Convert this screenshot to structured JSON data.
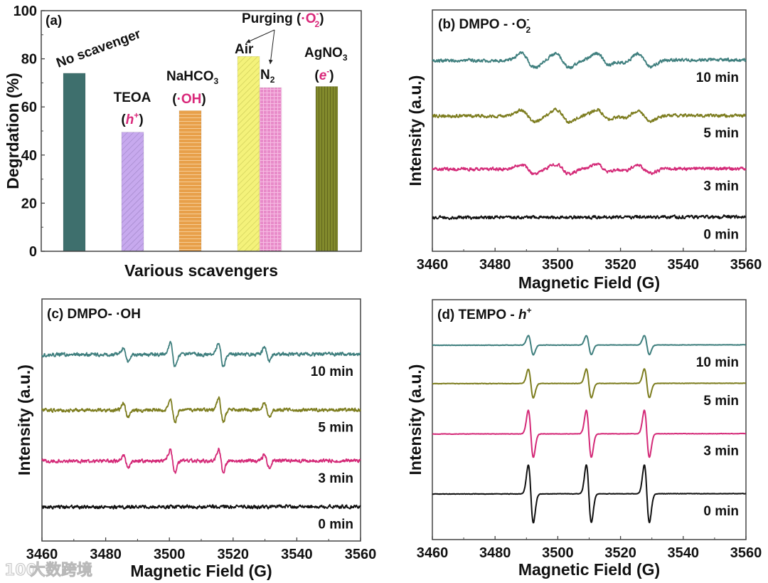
{
  "watermark": {
    "logo": "100",
    "text": "大数跨境"
  },
  "chart_data": [
    {
      "type": "bar",
      "panel_label": "(a)",
      "xlabel": "Various scavengers",
      "ylabel": "Degrdation (%)",
      "ylim": [
        0,
        100
      ],
      "yticks": [
        "0",
        "20",
        "40",
        "60",
        "80",
        "100"
      ],
      "ytick_values": [
        0,
        20,
        40,
        60,
        80,
        100
      ],
      "categories": [
        "No scavenger",
        "TEOA",
        "NaHCO3",
        "Air",
        "N2",
        "AgNO3"
      ],
      "values": [
        74,
        49.5,
        58.5,
        81,
        68,
        68.5
      ],
      "colors": [
        "#3e6f6d",
        "#c7a9ee",
        "#e8a04a",
        "#f4f27a",
        "#e88bc9",
        "#828a2c"
      ],
      "annotations": {
        "no_scavenger": "No scavenger",
        "teoa": "TEOA",
        "teoa_species": {
          "open": "(",
          "main": "h",
          "sup": "+",
          "close": ")"
        },
        "nahco3": {
          "main": "NaHCO",
          "sub": "3"
        },
        "nahco3_species": {
          "open": "(",
          "main": "·OH",
          "close": ")"
        },
        "purging": {
          "text": "Purging (",
          "main": "·O",
          "sup": "-",
          "sub": "2",
          "close": ")"
        },
        "air": "Air",
        "n2": {
          "main": "N",
          "sub": "2"
        },
        "agno3": {
          "main": "AgNO",
          "sub": "3"
        },
        "agno3_species": {
          "open": "(",
          "main": "e",
          "sup": "-",
          "close": ")"
        }
      },
      "accent_color": "#d9287a"
    },
    {
      "type": "line",
      "panel_label": {
        "text": "(b) DMPO - ·O",
        "sup": "-",
        "sub": "2"
      },
      "xlabel": "Magnetic Field (G)",
      "ylabel": "Intensity (a.u.)",
      "xlim": [
        3460,
        3560
      ],
      "xticks": [
        "3460",
        "3480",
        "3500",
        "3520",
        "3540",
        "3560"
      ],
      "xtick_values": [
        3460,
        3480,
        3500,
        3520,
        3540,
        3560
      ],
      "ylim": [
        0,
        100
      ],
      "peak_width": 2.2,
      "noise": 0.55,
      "peaks": [
        {
          "field": 3490.5,
          "rel": 1.0
        },
        {
          "field": 3501.5,
          "rel": 1.0
        },
        {
          "field": 3514.5,
          "rel": 1.0
        },
        {
          "field": 3519.5,
          "rel": 0.4
        },
        {
          "field": 3527.5,
          "rel": 0.9
        }
      ],
      "series": [
        {
          "name": "10 min",
          "color": "#3f7f7e",
          "baseline": 79,
          "amplitude": 3.0
        },
        {
          "name": "5 min",
          "color": "#7d7d1f",
          "baseline": 56,
          "amplitude": 2.5
        },
        {
          "name": "3 min",
          "color": "#d42a78",
          "baseline": 34,
          "amplitude": 2.0
        },
        {
          "name": "0 min",
          "color": "#111111",
          "baseline": 14,
          "amplitude": 0
        }
      ]
    },
    {
      "type": "line",
      "panel_label": {
        "text": "(c) DMPO- ·OH"
      },
      "xlabel": "Magnetic Field (G)",
      "ylabel": "Intensity (a.u.)",
      "xlim": [
        3460,
        3560
      ],
      "xticks": [
        "3460",
        "3480",
        "3500",
        "3520",
        "3540",
        "3560"
      ],
      "xtick_values": [
        3460,
        3480,
        3500,
        3520,
        3540,
        3560
      ],
      "ylim": [
        0,
        100
      ],
      "peak_width": 0.75,
      "noise": 0.6,
      "peaks": [
        {
          "field": 3486.3,
          "rel": 0.55
        },
        {
          "field": 3501.0,
          "rel": 1.0
        },
        {
          "field": 3516.2,
          "rel": 1.0
        },
        {
          "field": 3530.6,
          "rel": 0.55
        }
      ],
      "series": [
        {
          "name": "10 min",
          "color": "#3f7f7e",
          "baseline": 77,
          "amplitude": 5.0
        },
        {
          "name": "5 min",
          "color": "#7d7d1f",
          "baseline": 54,
          "amplitude": 5.0
        },
        {
          "name": "3 min",
          "color": "#d42a78",
          "baseline": 33,
          "amplitude": 4.8
        },
        {
          "name": "0 min",
          "color": "#111111",
          "baseline": 14,
          "amplitude": 0
        }
      ]
    },
    {
      "type": "line",
      "panel_label": {
        "text": "(d) TEMPO - ",
        "main": "h",
        "sup": "+"
      },
      "xlabel": "Magnetic Field (G)",
      "ylabel": "Intensity (a.u.)",
      "xlim": [
        3460,
        3560
      ],
      "xticks": [
        "3460",
        "3480",
        "3500",
        "3520",
        "3540",
        "3560"
      ],
      "xtick_values": [
        3460,
        3480,
        3500,
        3520,
        3540,
        3560
      ],
      "ylim": [
        0,
        100
      ],
      "peak_width": 0.8,
      "noise": 0.08,
      "peaks": [
        {
          "field": 3491.4,
          "rel": 1.0
        },
        {
          "field": 3509.9,
          "rel": 1.0
        },
        {
          "field": 3528.4,
          "rel": 1.0
        }
      ],
      "series": [
        {
          "name": "10 min",
          "color": "#3f7f7e",
          "baseline": 81,
          "amplitude": 4.0
        },
        {
          "name": "5 min",
          "color": "#7d7d1f",
          "baseline": 65,
          "amplitude": 6.0
        },
        {
          "name": "3 min",
          "color": "#d42a78",
          "baseline": 44,
          "amplitude": 9.8
        },
        {
          "name": "0 min",
          "color": "#111111",
          "baseline": 19,
          "amplitude": 12.0
        }
      ]
    }
  ]
}
